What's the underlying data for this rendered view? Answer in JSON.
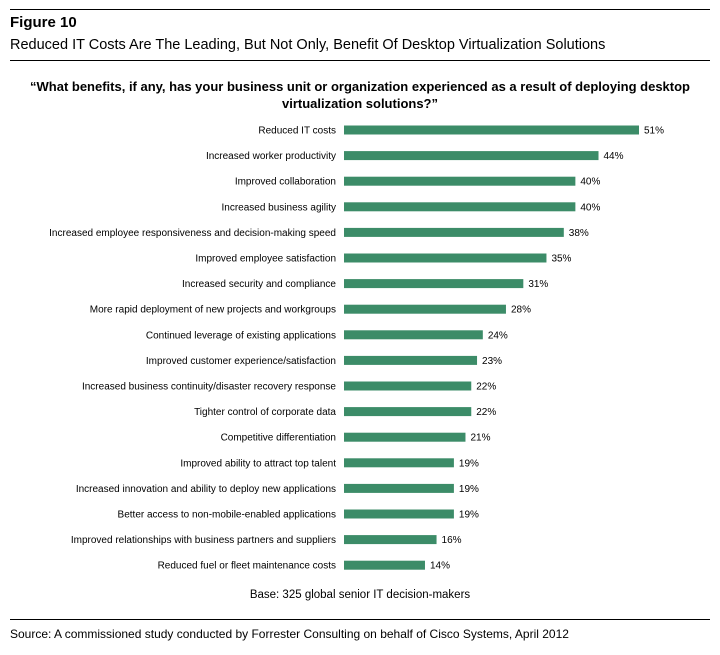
{
  "figure_label": "Figure 10",
  "figure_title": "Reduced IT Costs Are The Leading, But Not Only, Benefit Of Desktop Virtualization Solutions",
  "question": "“What benefits, if any, has your business unit or organization experienced as a result of deploying desktop virtualization solutions?”",
  "base_note": "Base: 325 global senior IT decision-makers",
  "source": "Source: A commissioned study conducted by Forrester Consulting on behalf of Cisco Systems, April 2012",
  "colors": {
    "bar": "#3c8c68",
    "text": "#000000"
  },
  "chart_data": {
    "type": "bar",
    "orientation": "horizontal",
    "title": "“What benefits, if any, has your business unit or organization experienced as a result of deploying desktop virtualization solutions?”",
    "value_suffix": "%",
    "xlim": [
      0,
      51
    ],
    "grid": false,
    "categories": [
      "Reduced IT costs",
      "Increased worker productivity",
      "Improved collaboration",
      "Increased business agility",
      "Increased employee responsiveness and decision-making speed",
      "Improved employee satisfaction",
      "Increased security and compliance",
      "More rapid deployment of new projects and workgroups",
      "Continued leverage of existing applications",
      "Improved customer experience/satisfaction",
      "Increased business continuity/disaster recovery response",
      "Tighter control of corporate data",
      "Competitive differentiation",
      "Improved ability to attract top talent",
      "Increased innovation and ability to deploy new applications",
      "Better access to non-mobile-enabled applications",
      "Improved relationships with business partners and suppliers",
      "Reduced fuel or fleet maintenance costs"
    ],
    "values": [
      51,
      44,
      40,
      40,
      38,
      35,
      31,
      28,
      24,
      23,
      22,
      22,
      21,
      19,
      19,
      19,
      16,
      14
    ],
    "data_labels": [
      "51%",
      "44%",
      "40%",
      "40%",
      "38%",
      "35%",
      "31%",
      "28%",
      "24%",
      "23%",
      "22%",
      "22%",
      "21%",
      "19%",
      "19%",
      "19%",
      "16%",
      "14%"
    ]
  }
}
